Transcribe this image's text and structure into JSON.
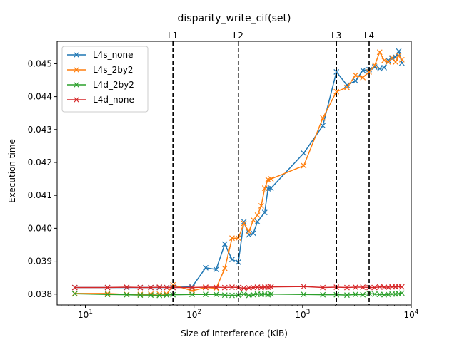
{
  "chart_data": {
    "type": "line",
    "title": "disparity_write_cif(set)",
    "xlabel": "Size of Interference (KiB)",
    "ylabel": "Execution time",
    "xscale": "log",
    "xlim": [
      5.5,
      10000
    ],
    "ylim": [
      0.03767,
      0.04568
    ],
    "x_ticks": [
      10,
      100,
      1000,
      10000
    ],
    "x_tick_labels": [
      "10^1",
      "10^2",
      "10^3",
      "10^4"
    ],
    "y_ticks": [
      0.038,
      0.039,
      0.04,
      0.041,
      0.042,
      0.043,
      0.044,
      0.045
    ],
    "y_tick_labels": [
      "0.038",
      "0.039",
      "0.040",
      "0.041",
      "0.042",
      "0.043",
      "0.044",
      "0.045"
    ],
    "legend_position": "top-left",
    "grid": false,
    "vertical_lines": [
      {
        "label": "L1",
        "x": 64
      },
      {
        "label": "L2",
        "x": 256
      },
      {
        "label": "L3",
        "x": 2048
      },
      {
        "label": "L4",
        "x": 4096
      }
    ],
    "series": [
      {
        "name": "L4s_none",
        "color": "#1f77b4",
        "points": [
          [
            8,
            0.0382
          ],
          [
            16,
            0.0382
          ],
          [
            24,
            0.0382
          ],
          [
            32,
            0.0382
          ],
          [
            40,
            0.0382
          ],
          [
            48,
            0.0382
          ],
          [
            56,
            0.0382
          ],
          [
            64,
            0.03821
          ],
          [
            96,
            0.03822
          ],
          [
            128,
            0.0388
          ],
          [
            160,
            0.03875
          ],
          [
            192,
            0.03952
          ],
          [
            224,
            0.03905
          ],
          [
            256,
            0.03897
          ],
          [
            288,
            0.0402
          ],
          [
            320,
            0.0398
          ],
          [
            352,
            0.03985
          ],
          [
            384,
            0.0402
          ],
          [
            448,
            0.04048
          ],
          [
            480,
            0.0412
          ],
          [
            512,
            0.04122
          ],
          [
            1024,
            0.04228
          ],
          [
            1536,
            0.04312
          ],
          [
            2048,
            0.04475
          ],
          [
            2560,
            0.04435
          ],
          [
            3072,
            0.04448
          ],
          [
            3584,
            0.0448
          ],
          [
            4096,
            0.04482
          ],
          [
            4608,
            0.0449
          ],
          [
            5120,
            0.04485
          ],
          [
            5632,
            0.04488
          ],
          [
            6144,
            0.0451
          ],
          [
            6656,
            0.04515
          ],
          [
            7168,
            0.0452
          ],
          [
            7680,
            0.04538
          ],
          [
            8192,
            0.04502
          ]
        ]
      },
      {
        "name": "L4s_2by2",
        "color": "#ff7f0e",
        "points": [
          [
            8,
            0.03802
          ],
          [
            16,
            0.03802
          ],
          [
            24,
            0.03799
          ],
          [
            32,
            0.03799
          ],
          [
            40,
            0.038
          ],
          [
            48,
            0.038
          ],
          [
            56,
            0.038
          ],
          [
            64,
            0.03828
          ],
          [
            96,
            0.0381
          ],
          [
            128,
            0.0382
          ],
          [
            160,
            0.03818
          ],
          [
            192,
            0.03878
          ],
          [
            224,
            0.0397
          ],
          [
            256,
            0.0397
          ],
          [
            288,
            0.04015
          ],
          [
            320,
            0.0399
          ],
          [
            352,
            0.04025
          ],
          [
            384,
            0.0404
          ],
          [
            416,
            0.04068
          ],
          [
            448,
            0.04122
          ],
          [
            480,
            0.04148
          ],
          [
            512,
            0.0415
          ],
          [
            1024,
            0.0419
          ],
          [
            1536,
            0.04335
          ],
          [
            2048,
            0.04415
          ],
          [
            2560,
            0.04428
          ],
          [
            3072,
            0.04465
          ],
          [
            3584,
            0.04458
          ],
          [
            4096,
            0.04475
          ],
          [
            4608,
            0.04495
          ],
          [
            5120,
            0.04535
          ],
          [
            5632,
            0.0451
          ],
          [
            6144,
            0.04505
          ],
          [
            6656,
            0.04518
          ],
          [
            7168,
            0.04505
          ],
          [
            7680,
            0.04525
          ],
          [
            8192,
            0.04512
          ]
        ]
      },
      {
        "name": "L4d_2by2",
        "color": "#2ca02c",
        "points": [
          [
            8,
            0.03801
          ],
          [
            16,
            0.03799
          ],
          [
            24,
            0.03798
          ],
          [
            32,
            0.03797
          ],
          [
            40,
            0.03797
          ],
          [
            48,
            0.03796
          ],
          [
            56,
            0.03797
          ],
          [
            64,
            0.03798
          ],
          [
            96,
            0.03799
          ],
          [
            128,
            0.03799
          ],
          [
            160,
            0.03799
          ],
          [
            192,
            0.03797
          ],
          [
            224,
            0.03796
          ],
          [
            256,
            0.03797
          ],
          [
            288,
            0.038
          ],
          [
            320,
            0.03796
          ],
          [
            352,
            0.03798
          ],
          [
            384,
            0.038
          ],
          [
            416,
            0.03799
          ],
          [
            448,
            0.038
          ],
          [
            480,
            0.03798
          ],
          [
            512,
            0.038
          ],
          [
            1024,
            0.03799
          ],
          [
            1536,
            0.03798
          ],
          [
            2048,
            0.03798
          ],
          [
            2560,
            0.03797
          ],
          [
            3072,
            0.03799
          ],
          [
            3584,
            0.03798
          ],
          [
            4096,
            0.03802
          ],
          [
            4608,
            0.038
          ],
          [
            5120,
            0.03799
          ],
          [
            5632,
            0.03798
          ],
          [
            6144,
            0.03799
          ],
          [
            6656,
            0.038
          ],
          [
            7168,
            0.038
          ],
          [
            7680,
            0.03801
          ],
          [
            8192,
            0.03803
          ]
        ]
      },
      {
        "name": "L4d_none",
        "color": "#d62728",
        "points": [
          [
            8,
            0.0382
          ],
          [
            16,
            0.0382
          ],
          [
            24,
            0.03821
          ],
          [
            32,
            0.0382
          ],
          [
            40,
            0.0382
          ],
          [
            48,
            0.03821
          ],
          [
            56,
            0.0382
          ],
          [
            64,
            0.0382
          ],
          [
            96,
            0.0382
          ],
          [
            128,
            0.03821
          ],
          [
            160,
            0.03821
          ],
          [
            192,
            0.0382
          ],
          [
            224,
            0.03821
          ],
          [
            256,
            0.0382
          ],
          [
            288,
            0.03818
          ],
          [
            320,
            0.03819
          ],
          [
            352,
            0.0382
          ],
          [
            384,
            0.03821
          ],
          [
            416,
            0.0382
          ],
          [
            448,
            0.03821
          ],
          [
            480,
            0.03821
          ],
          [
            512,
            0.03822
          ],
          [
            1024,
            0.03823
          ],
          [
            1536,
            0.0382
          ],
          [
            2048,
            0.03821
          ],
          [
            2560,
            0.0382
          ],
          [
            3072,
            0.03821
          ],
          [
            3584,
            0.03821
          ],
          [
            4096,
            0.0382
          ],
          [
            4608,
            0.0382
          ],
          [
            5120,
            0.03822
          ],
          [
            5632,
            0.03821
          ],
          [
            6144,
            0.03821
          ],
          [
            6656,
            0.03822
          ],
          [
            7168,
            0.03822
          ],
          [
            7680,
            0.03823
          ],
          [
            8192,
            0.03822
          ]
        ]
      }
    ]
  }
}
